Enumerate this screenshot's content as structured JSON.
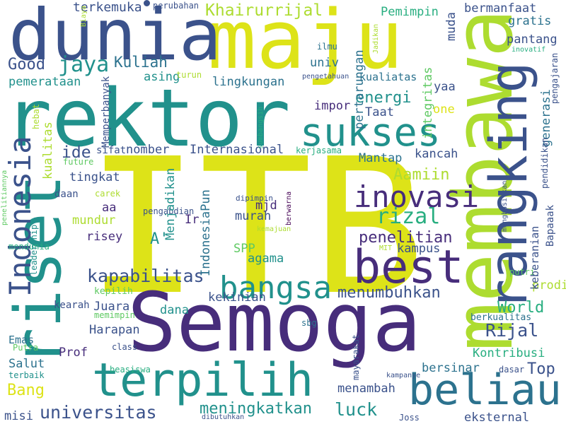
{
  "palette": {
    "background": "#ffffff",
    "dark_purple": "#440154",
    "indigo": "#472d7b",
    "blue": "#3b528b",
    "steel": "#2c728e",
    "teal": "#21918c",
    "green": "#28ae80",
    "light_green": "#5ec962",
    "lime": "#addc30",
    "yellow": "#dde318"
  },
  "words": [
    {
      "text": "ITB",
      "color": "#dde318",
      "vertical": false
    },
    {
      "text": "Semoga",
      "color": "#472d7b",
      "vertical": false
    },
    {
      "text": "rektor",
      "color": "#21918c",
      "vertical": false
    },
    {
      "text": "maju",
      "color": "#dde318",
      "vertical": false
    },
    {
      "text": "dunia",
      "color": "#3b528b",
      "vertical": false
    },
    {
      "text": "membawa",
      "color": "#addc30",
      "vertical": true
    },
    {
      "text": "riset",
      "color": "#21918c",
      "vertical": true
    },
    {
      "text": "terpilih",
      "color": "#21918c",
      "vertical": false
    },
    {
      "text": "rangking",
      "color": "#3b528b",
      "vertical": true
    },
    {
      "text": "sukses",
      "color": "#21918c",
      "vertical": false
    },
    {
      "text": "best",
      "color": "#472d7b",
      "vertical": false
    },
    {
      "text": "beliau",
      "color": "#2c728e",
      "vertical": false
    },
    {
      "text": "Indonesia",
      "color": "#3b528b",
      "vertical": true
    },
    {
      "text": "bangsa",
      "color": "#21918c",
      "vertical": false
    },
    {
      "text": "inovasi",
      "color": "#472d7b",
      "vertical": false
    },
    {
      "text": "universitas",
      "color": "#3b528b",
      "vertical": false
    },
    {
      "text": "terkemuka",
      "color": "#3b528b",
      "vertical": false
    },
    {
      "text": "perubahan",
      "color": "#3b528b",
      "vertical": false
    },
    {
      "text": "Khairurrijal",
      "color": "#addc30",
      "vertical": false
    },
    {
      "text": "Good",
      "color": "#3b528b",
      "vertical": false
    },
    {
      "text": "jaya",
      "color": "#21918c",
      "vertical": false
    },
    {
      "text": "Kuliah",
      "color": "#2c728e",
      "vertical": false
    },
    {
      "text": "pemerataan",
      "color": "#21918c",
      "vertical": false
    },
    {
      "text": "asing",
      "color": "#21918c",
      "vertical": false
    },
    {
      "text": "turun",
      "color": "#addc30",
      "vertical": false
    },
    {
      "text": "lingkungan",
      "color": "#2c728e",
      "vertical": false
    },
    {
      "text": "Pemimpin",
      "color": "#28ae80",
      "vertical": false
    },
    {
      "text": "bermanfaat",
      "color": "#3b528b",
      "vertical": false
    },
    {
      "text": "gratis",
      "color": "#2c728e",
      "vertical": false
    },
    {
      "text": "pantang",
      "color": "#3b528b",
      "vertical": false
    },
    {
      "text": "inovatif",
      "color": "#28ae80",
      "vertical": false
    },
    {
      "text": "ilmu",
      "color": "#2c728e",
      "vertical": false
    },
    {
      "text": "univ",
      "color": "#2c728e",
      "vertical": false
    },
    {
      "text": "pengetahuan",
      "color": "#3b528b",
      "vertical": false
    },
    {
      "text": "kualiatas",
      "color": "#2c728e",
      "vertical": false
    },
    {
      "text": "yaa",
      "color": "#3b528b",
      "vertical": false
    },
    {
      "text": "energi",
      "color": "#21918c",
      "vertical": false
    },
    {
      "text": "impor",
      "color": "#472d7b",
      "vertical": false
    },
    {
      "text": "one",
      "color": "#dde318",
      "vertical": false
    },
    {
      "text": "Taat",
      "color": "#3b528b",
      "vertical": false
    },
    {
      "text": "ide",
      "color": "#3b528b",
      "vertical": false
    },
    {
      "text": "sifat",
      "color": "#3b528b",
      "vertical": false
    },
    {
      "text": "nomber",
      "color": "#3b528b",
      "vertical": false
    },
    {
      "text": "Internasional",
      "color": "#3b528b",
      "vertical": false
    },
    {
      "text": "kerjasama",
      "color": "#28ae80",
      "vertical": false
    },
    {
      "text": "Mantap",
      "color": "#2c728e",
      "vertical": false
    },
    {
      "text": "kancah",
      "color": "#3b528b",
      "vertical": false
    },
    {
      "text": "tingkat",
      "color": "#3b528b",
      "vertical": false
    },
    {
      "text": "Aamiin",
      "color": "#addc30",
      "vertical": false
    },
    {
      "text": "mjd",
      "color": "#472d7b",
      "vertical": false
    },
    {
      "text": "daan",
      "color": "#3b528b",
      "vertical": false
    },
    {
      "text": "carek",
      "color": "#addc30",
      "vertical": false
    },
    {
      "text": "pengabdian",
      "color": "#3b528b",
      "vertical": false
    },
    {
      "text": "dipimpin",
      "color": "#3b528b",
      "vertical": false
    },
    {
      "text": "aa",
      "color": "#472d7b",
      "vertical": false
    },
    {
      "text": "rizal",
      "color": "#28ae80",
      "vertical": false
    },
    {
      "text": "murah",
      "color": "#3b528b",
      "vertical": false
    },
    {
      "text": "mundur",
      "color": "#addc30",
      "vertical": false
    },
    {
      "text": "Ir",
      "color": "#472d7b",
      "vertical": false
    },
    {
      "text": "penelitian",
      "color": "#472d7b",
      "vertical": false
    },
    {
      "text": "risey",
      "color": "#472d7b",
      "vertical": false
    },
    {
      "text": "A'",
      "color": "#21918c",
      "vertical": false
    },
    {
      "text": "SPP",
      "color": "#5ec962",
      "vertical": false
    },
    {
      "text": "agama",
      "color": "#21918c",
      "vertical": false
    },
    {
      "text": "kampus",
      "color": "#3b528b",
      "vertical": false
    },
    {
      "text": "kemajuan",
      "color": "#addc30",
      "vertical": false
    },
    {
      "text": "MIT",
      "color": "#addc30",
      "vertical": false
    },
    {
      "text": "kapabilitas",
      "color": "#3b528b",
      "vertical": false
    },
    {
      "text": "kepilih",
      "color": "#5ec962",
      "vertical": false
    },
    {
      "text": "menumbuhkan",
      "color": "#3b528b",
      "vertical": false
    },
    {
      "text": "putri",
      "color": "#5ec962",
      "vertical": false
    },
    {
      "text": "prodi",
      "color": "#addc30",
      "vertical": false
    },
    {
      "text": "kearah",
      "color": "#3b528b",
      "vertical": false
    },
    {
      "text": "Juara",
      "color": "#3b528b",
      "vertical": false
    },
    {
      "text": "dana",
      "color": "#21918c",
      "vertical": false
    },
    {
      "text": "kekinian",
      "color": "#3b528b",
      "vertical": false
    },
    {
      "text": "memimpin",
      "color": "#5ec962",
      "vertical": false
    },
    {
      "text": "sbg",
      "color": "#2c728e",
      "vertical": false
    },
    {
      "text": "World",
      "color": "#28ae80",
      "vertical": false
    },
    {
      "text": "Harapan",
      "color": "#3b528b",
      "vertical": false
    },
    {
      "text": "Rijal",
      "color": "#3b528b",
      "vertical": false
    },
    {
      "text": "berkualitas",
      "color": "#2c728e",
      "vertical": false
    },
    {
      "text": "Emas",
      "color": "#2c728e",
      "vertical": false
    },
    {
      "text": "Putra",
      "color": "#5ec962",
      "vertical": false
    },
    {
      "text": "class",
      "color": "#3b528b",
      "vertical": false
    },
    {
      "text": "Prof",
      "color": "#472d7b",
      "vertical": false
    },
    {
      "text": "Salut",
      "color": "#2c728e",
      "vertical": false
    },
    {
      "text": "terbaik",
      "color": "#21918c",
      "vertical": false
    },
    {
      "text": "beasiswa",
      "color": "#28ae80",
      "vertical": false
    },
    {
      "text": "Kontribusi",
      "color": "#28ae80",
      "vertical": false
    },
    {
      "text": "bersinar",
      "color": "#2c728e",
      "vertical": false
    },
    {
      "text": "Top",
      "color": "#3b528b",
      "vertical": false
    },
    {
      "text": "dasar",
      "color": "#3b528b",
      "vertical": false
    },
    {
      "text": "kampanye",
      "color": "#3b528b",
      "vertical": false
    },
    {
      "text": "Bang",
      "color": "#dde318",
      "vertical": false
    },
    {
      "text": "menambah",
      "color": "#3b528b",
      "vertical": false
    },
    {
      "text": "luck",
      "color": "#21918c",
      "vertical": false
    },
    {
      "text": "meningkatkan",
      "color": "#21918c",
      "vertical": false
    },
    {
      "text": "misi",
      "color": "#3b528b",
      "vertical": false
    },
    {
      "text": "dibutuhkan",
      "color": "#3b528b",
      "vertical": false
    },
    {
      "text": "Joss",
      "color": "#3b528b",
      "vertical": false
    },
    {
      "text": "eksternal",
      "color": "#3b528b",
      "vertical": false
    },
    {
      "text": "Biaya",
      "color": "#addc30",
      "vertical": true
    },
    {
      "text": "mendunia",
      "color": "#28ae80",
      "vertical": false
    },
    {
      "text": "hebat",
      "color": "#addc30",
      "vertical": true
    },
    {
      "text": "kualitas",
      "color": "#addc30",
      "vertical": true
    },
    {
      "text": "future",
      "color": "#5ec962",
      "vertical": false
    },
    {
      "text": "Memperbanyak",
      "color": "#3b528b",
      "vertical": true
    },
    {
      "text": "penelitiannya",
      "color": "#5ec962",
      "vertical": true
    },
    {
      "text": "leadership",
      "color": "#21918c",
      "vertical": true
    },
    {
      "text": "Menjadikan",
      "color": "#21918c",
      "vertical": true
    },
    {
      "text": "IndonesiaPun",
      "color": "#2c728e",
      "vertical": true
    },
    {
      "text": "sumbangsih",
      "color": "#28ae80",
      "vertical": true
    },
    {
      "text": "berwarna",
      "color": "#440154",
      "vertical": true
    },
    {
      "text": "pertarungan",
      "color": "#2c728e",
      "vertical": true
    },
    {
      "text": "integritas",
      "color": "#5ec962",
      "vertical": true
    },
    {
      "text": "Jadikan",
      "color": "#addc30",
      "vertical": true
    },
    {
      "text": "muda",
      "color": "#3b528b",
      "vertical": true
    },
    {
      "text": "generasi",
      "color": "#2c728e",
      "vertical": true
    },
    {
      "text": "pendidikan",
      "color": "#3b528b",
      "vertical": true
    },
    {
      "text": "pengajaran",
      "color": "#3b528b",
      "vertical": true
    },
    {
      "text": "Bapaaak",
      "color": "#3b528b",
      "vertical": true
    },
    {
      "text": "keberanian",
      "color": "#3b528b",
      "vertical": true
    },
    {
      "text": "menghasilkan",
      "color": "#3b528b",
      "vertical": true
    },
    {
      "text": "mayarakat",
      "color": "#3b528b",
      "vertical": true
    }
  ]
}
